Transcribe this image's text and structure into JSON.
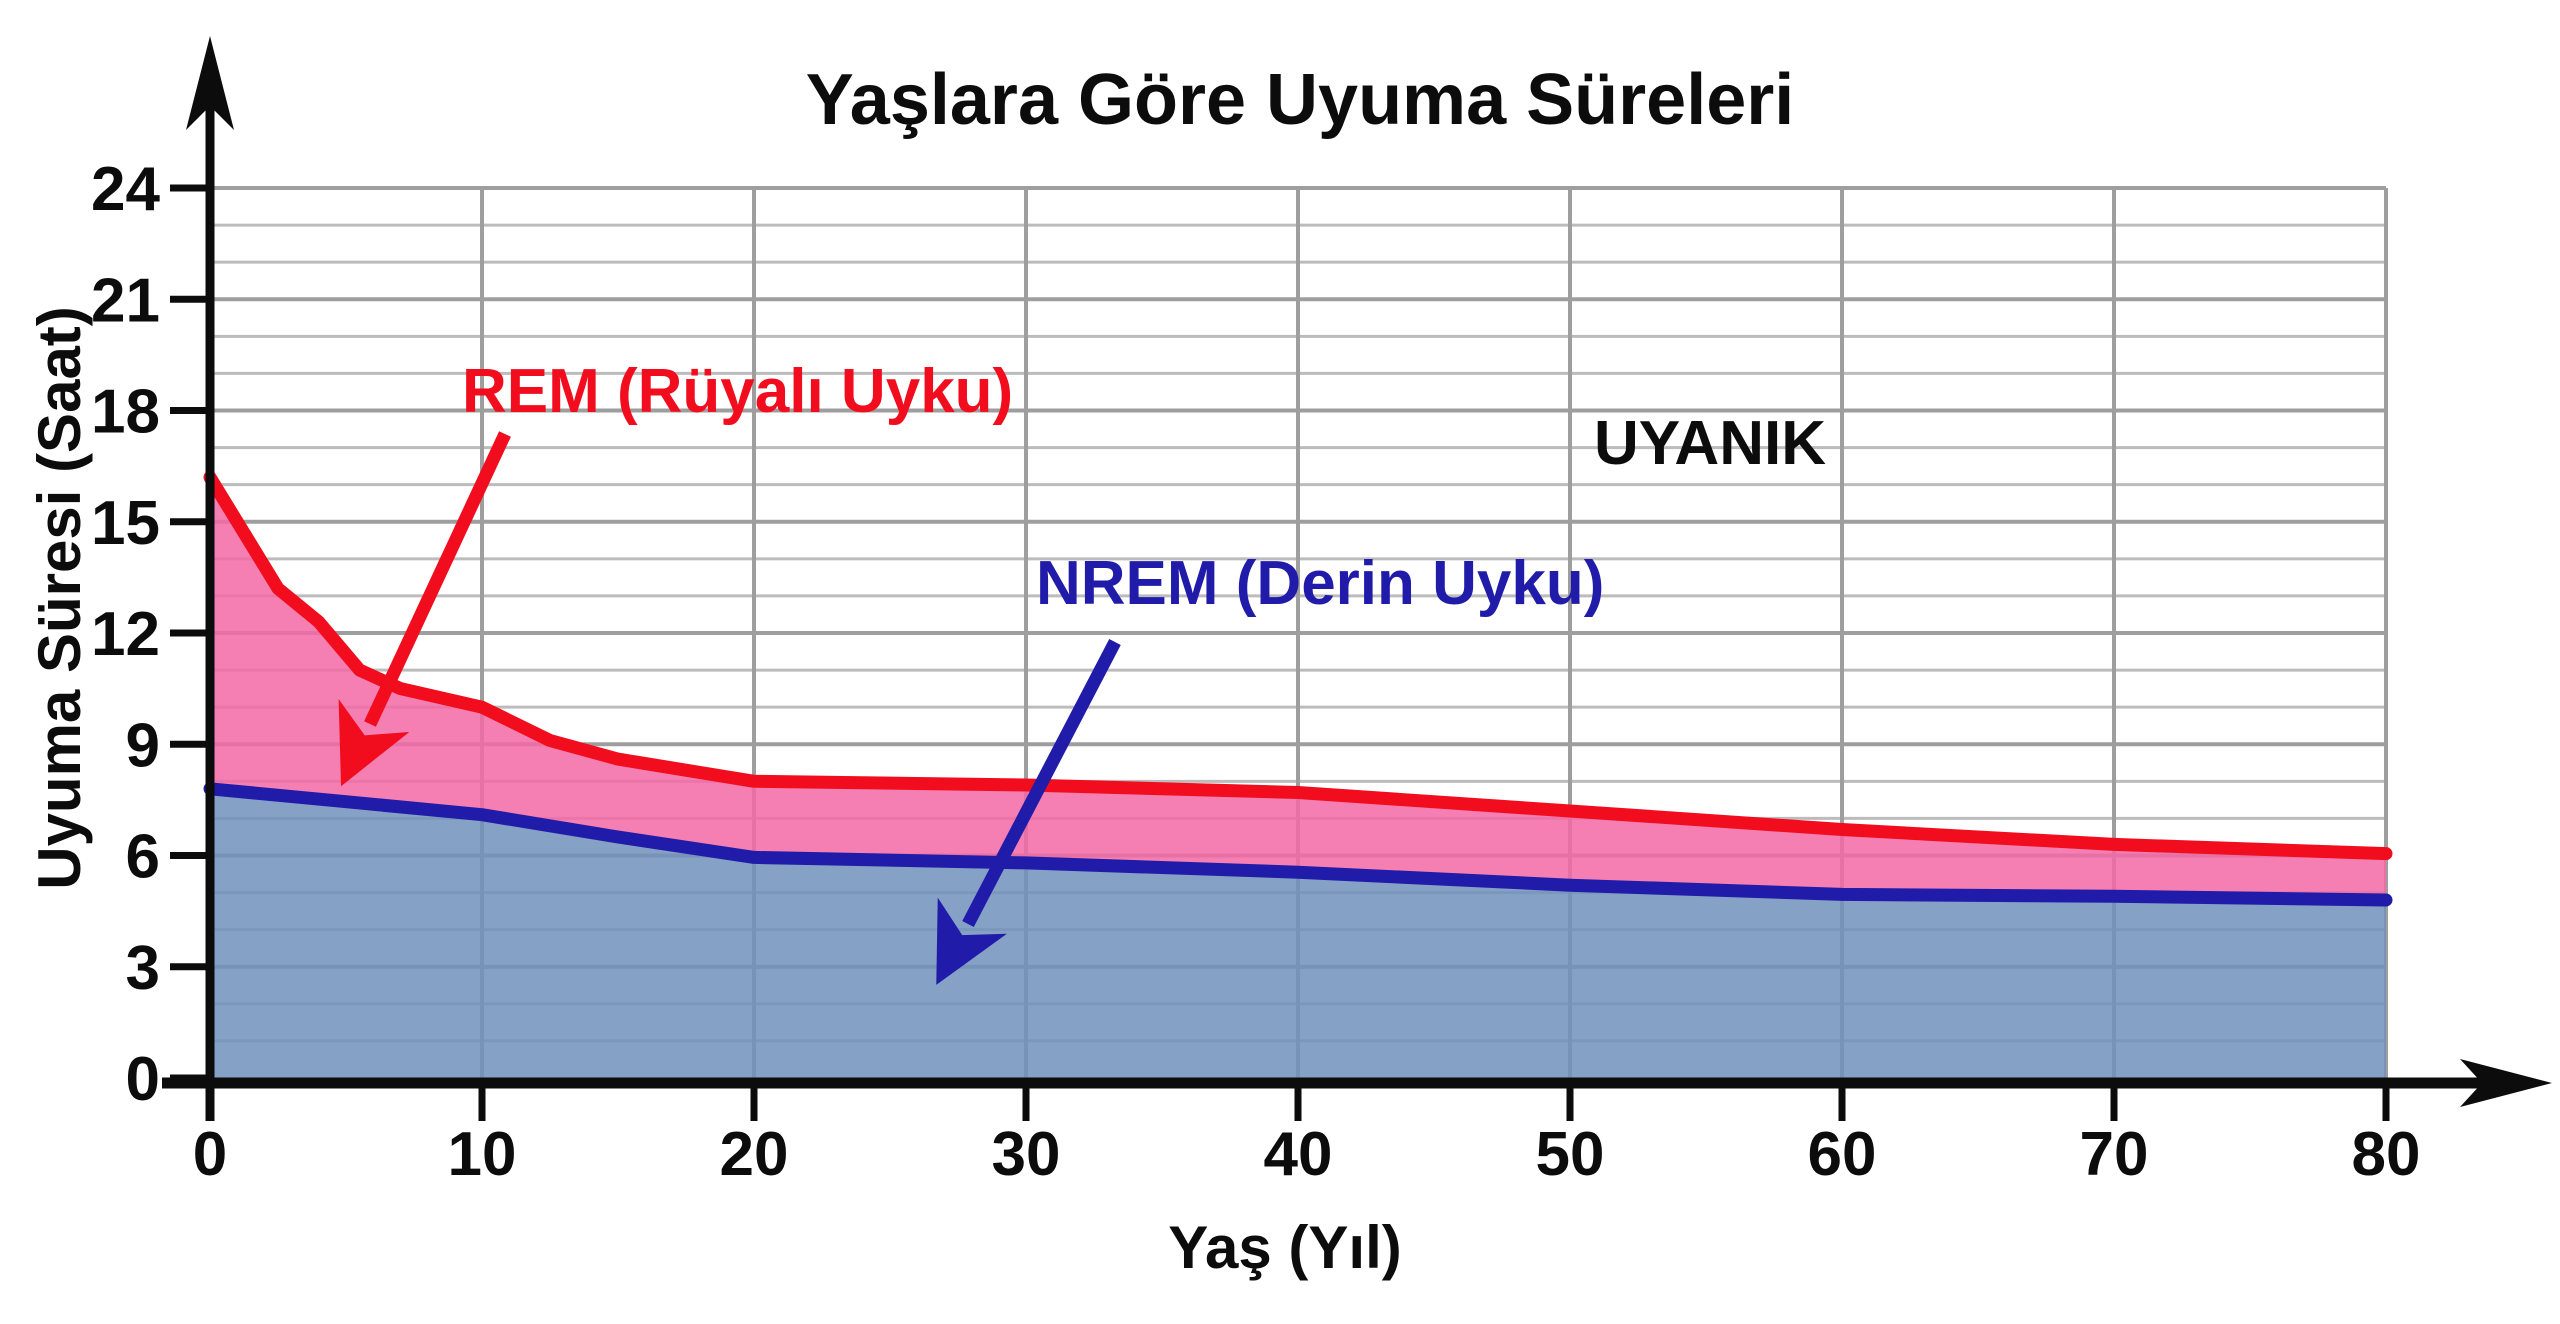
{
  "colors": {
    "axis": "#0c0c0c",
    "rem_red": "#f10d1d",
    "nrem_navy": "#211ba9",
    "rem_fill": "#f369a4",
    "nrem_fill": "#7091bc",
    "grid_minor": "#bcbcbc",
    "grid_major": "#9e9e9e",
    "text_black": "#0c0c0c",
    "background": "#ffffff"
  },
  "chart_data": {
    "type": "area",
    "title": "Yaşlara Göre Uyuma Süreleri",
    "xlabel": "Yaş (Yıl)",
    "ylabel": "Uyuma Süresi (Saat)",
    "xlim": [
      0,
      80
    ],
    "ylim": [
      0,
      24
    ],
    "x_ticks": [
      0,
      10,
      20,
      30,
      40,
      50,
      60,
      70,
      80
    ],
    "y_ticks": [
      0,
      3,
      6,
      9,
      12,
      15,
      18,
      21,
      24
    ],
    "grid": {
      "horizontal_step": 1,
      "vertical_step": 10,
      "legend_position": "none"
    },
    "series": [
      {
        "name": "total-sleep-top-of-rem-band",
        "band_label": "REM (Rüyalı Uyku)",
        "x": [
          0,
          2.5,
          4,
          5.5,
          7,
          10,
          12.5,
          15,
          20,
          30,
          40,
          50,
          60,
          70,
          80
        ],
        "y": [
          16.2,
          13.2,
          12.3,
          11.0,
          10.5,
          10.0,
          9.1,
          8.6,
          8.0,
          7.9,
          7.7,
          7.2,
          6.7,
          6.3,
          6.05
        ]
      },
      {
        "name": "nrem-sleep",
        "band_label": "NREM (Derin Uyku)",
        "x": [
          0,
          5,
          10,
          15,
          20,
          30,
          40,
          50,
          60,
          70,
          80
        ],
        "y": [
          7.8,
          7.45,
          7.1,
          6.5,
          5.95,
          5.8,
          5.55,
          5.2,
          4.95,
          4.9,
          4.8
        ]
      }
    ],
    "annotations": {
      "awake_label": "UYANIK",
      "rem_label": "REM (Rüyalı Uyku)",
      "nrem_label": "NREM (Derin Uyku)"
    }
  }
}
